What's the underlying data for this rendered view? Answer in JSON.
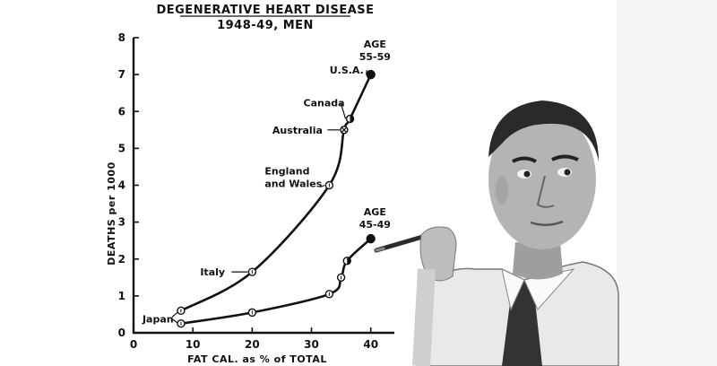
{
  "chart_data": {
    "type": "line",
    "title": "DEGENERATIVE HEART DISEASE",
    "subtitle": "1948-49, MEN",
    "xlabel": "FAT CAL. as % of TOTAL",
    "ylabel": "DEATHS per 1000",
    "xlim": [
      0,
      45
    ],
    "ylim": [
      0,
      8
    ],
    "x_ticks": [
      0,
      10,
      20,
      30,
      40
    ],
    "y_ticks": [
      0,
      1,
      2,
      3,
      4,
      5,
      6,
      7,
      8
    ],
    "grid": false,
    "series": [
      {
        "name": "AGE 55-59",
        "name_lines": [
          "AGE",
          "55-59"
        ],
        "points": [
          {
            "x": 8,
            "y": 0.6,
            "marker": "open"
          },
          {
            "x": 20,
            "y": 1.65,
            "marker": "open",
            "label": "Italy"
          },
          {
            "x": 33,
            "y": 4.0,
            "marker": "open",
            "label_lines": [
              "England",
              "and Wales"
            ]
          },
          {
            "x": 35.5,
            "y": 5.5,
            "marker": "cross",
            "label": "Australia"
          },
          {
            "x": 36.5,
            "y": 5.8,
            "marker": "half",
            "label": "Canada"
          },
          {
            "x": 40,
            "y": 7.0,
            "marker": "filled",
            "label": "U.S.A."
          }
        ]
      },
      {
        "name": "AGE 45-49",
        "name_lines": [
          "AGE",
          "45-49"
        ],
        "points": [
          {
            "x": 8,
            "y": 0.25,
            "marker": "open"
          },
          {
            "x": 20,
            "y": 0.55,
            "marker": "open"
          },
          {
            "x": 33,
            "y": 1.05,
            "marker": "open"
          },
          {
            "x": 35,
            "y": 1.5,
            "marker": "open"
          },
          {
            "x": 36,
            "y": 1.95,
            "marker": "half"
          },
          {
            "x": 40,
            "y": 2.55,
            "marker": "filled"
          }
        ]
      }
    ],
    "shared_label": {
      "text": "Japan",
      "x": 8
    }
  }
}
